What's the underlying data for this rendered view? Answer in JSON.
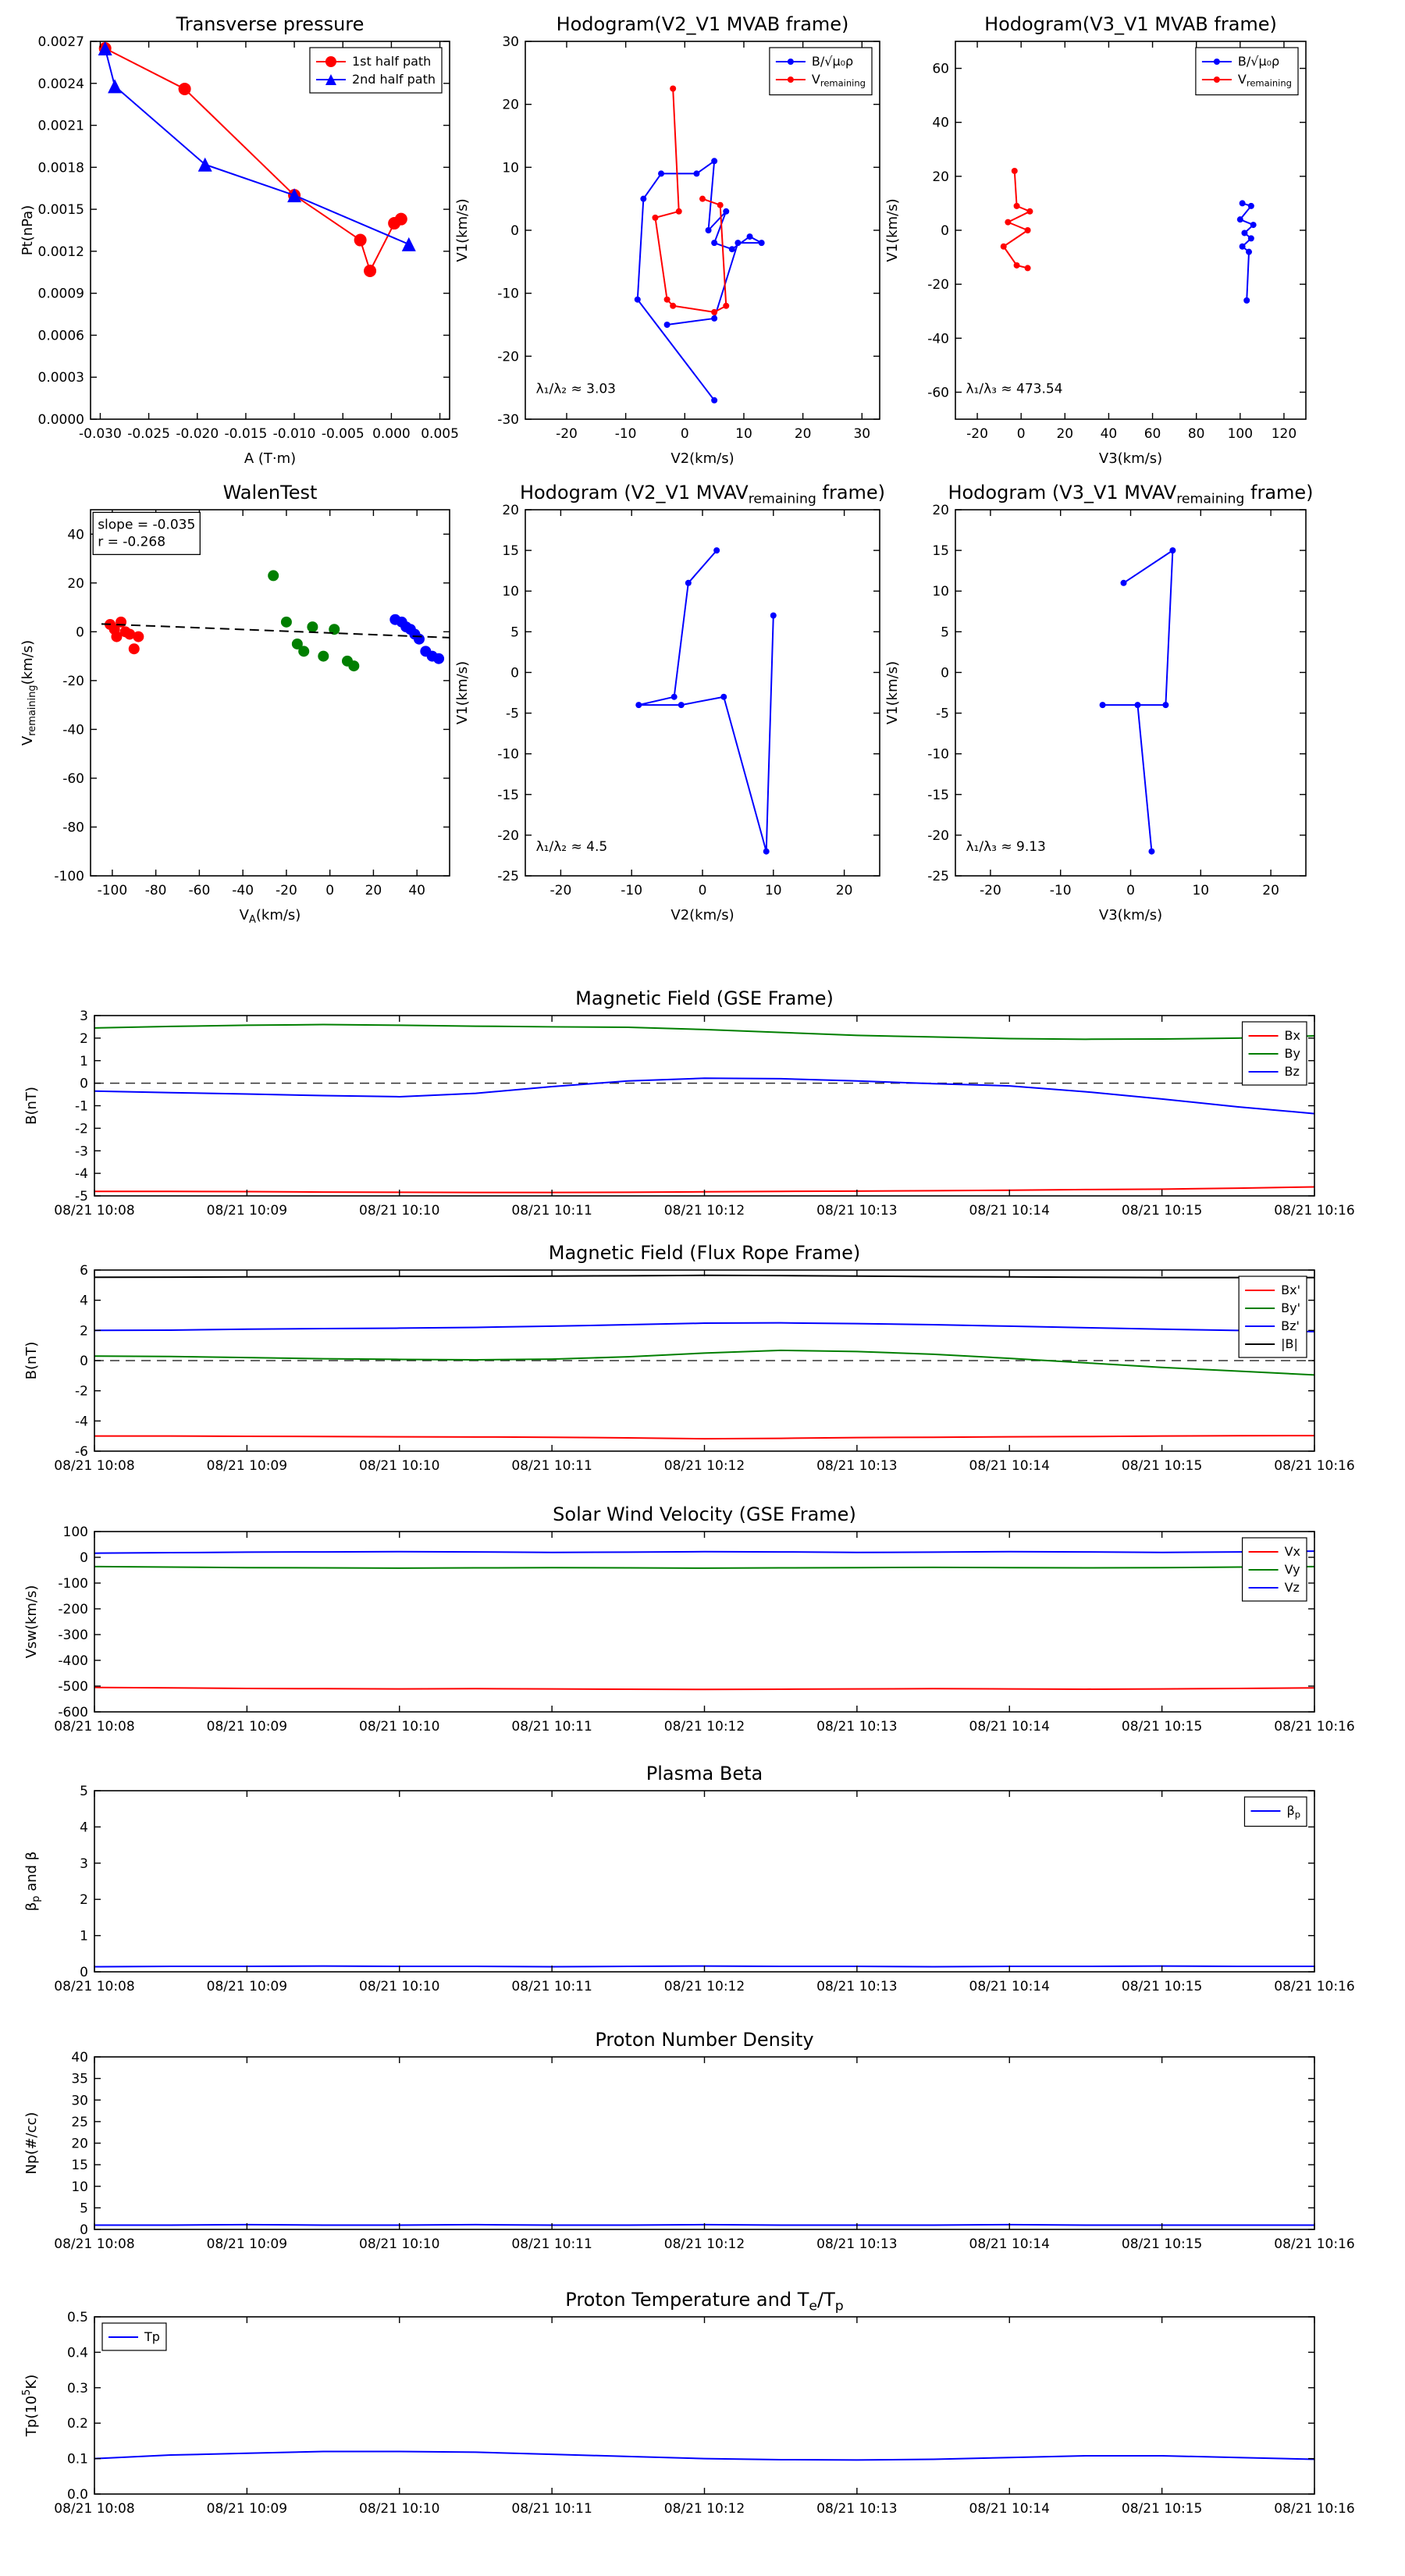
{
  "colors": {
    "red": "#ff0000",
    "green": "#007f00",
    "blue": "#0000ff",
    "black": "#000000"
  },
  "time_labels": [
    "08/21 10:08",
    "08/21 10:09",
    "08/21 10:10",
    "08/21 10:11",
    "08/21 10:12",
    "08/21 10:13",
    "08/21 10:14",
    "08/21 10:15",
    "08/21 10:16"
  ],
  "time_ticks": [
    0,
    1,
    2,
    3,
    4,
    5,
    6,
    7,
    8
  ],
  "time_x": [
    0,
    0.5,
    1,
    1.5,
    2,
    2.5,
    3,
    3.5,
    4,
    4.5,
    5,
    5.5,
    6,
    6.5,
    7,
    7.5,
    8
  ],
  "chart_data": [
    {
      "id": "transverse-pressure",
      "type": "line",
      "title": "Transverse pressure",
      "xlabel": "A (T·m)",
      "ylabel": "Pt(nPa)",
      "xlim": [
        -0.031,
        0.006
      ],
      "ylim": [
        0,
        0.0027
      ],
      "xticks": [
        -0.03,
        -0.025,
        -0.02,
        -0.015,
        -0.01,
        -0.005,
        0.0,
        0.005
      ],
      "xtick_labels": [
        "-0.030",
        "-0.025",
        "-0.020",
        "-0.015",
        "-0.010",
        "-0.005",
        "0.000",
        "0.005"
      ],
      "yticks": [
        0,
        0.0003,
        0.0006,
        0.0009,
        0.0012,
        0.0015,
        0.0018,
        0.0021,
        0.0024,
        0.0027
      ],
      "ytick_labels": [
        "0.0000",
        "0.0003",
        "0.0006",
        "0.0009",
        "0.0012",
        "0.0015",
        "0.0018",
        "0.0021",
        "0.0024",
        "0.0027"
      ],
      "legend": {
        "position": "ne"
      },
      "series": [
        {
          "name": "1st half path",
          "color": "#ff0000",
          "marker": "circle",
          "marker_size": 8,
          "x": [
            -0.0295,
            -0.0213,
            -0.01,
            -0.0032,
            -0.0022,
            0.0003,
            0.001
          ],
          "y": [
            0.00265,
            0.00236,
            0.0016,
            0.00128,
            0.00106,
            0.0014,
            0.00143
          ]
        },
        {
          "name": "2nd half path",
          "color": "#0000ff",
          "marker": "triangle",
          "marker_size": 9,
          "x": [
            -0.0295,
            -0.0285,
            -0.0192,
            -0.01,
            0.0018
          ],
          "y": [
            0.00265,
            0.00238,
            0.00182,
            0.0016,
            0.00125
          ]
        }
      ]
    },
    {
      "id": "hodogram-v2v1-mvab",
      "type": "line",
      "title": "Hodogram(V2_V1 MVAB frame)",
      "xlabel": "V2(km/s)",
      "ylabel": "V1(km/s)",
      "xlim": [
        -27,
        33
      ],
      "ylim": [
        -30,
        30
      ],
      "xticks": [
        -20,
        -10,
        0,
        10,
        20,
        30
      ],
      "yticks": [
        -30,
        -20,
        -10,
        0,
        10,
        20,
        30
      ],
      "legend": {
        "position": "ne"
      },
      "annotations": [
        {
          "text": "λ₁/λ₂ ≈ 3.03",
          "x": 0.03,
          "y": 0.9
        }
      ],
      "series": [
        {
          "name": "B/√μ₀ρ",
          "color": "#0000ff",
          "marker": "dot",
          "marker_size": 4,
          "x": [
            5,
            -8,
            -7,
            -4,
            2,
            5,
            4,
            7,
            5,
            8,
            11,
            13,
            9,
            5,
            -3
          ],
          "y": [
            -27,
            -11,
            5,
            9,
            9,
            11,
            0,
            3,
            -2,
            -3,
            -1,
            -2,
            -2,
            -14,
            -15
          ]
        },
        {
          "name": "V_{remaining}",
          "color": "#ff0000",
          "marker": "dot",
          "marker_size": 4,
          "x": [
            -2,
            -1,
            -5,
            -3,
            -2,
            5,
            7,
            6,
            3
          ],
          "y": [
            22.5,
            3,
            2,
            -11,
            -12,
            -13,
            -12,
            4,
            5
          ]
        }
      ]
    },
    {
      "id": "hodogram-v3v1-mvab",
      "type": "line",
      "title": "Hodogram(V3_V1 MVAB frame)",
      "xlabel": "V3(km/s)",
      "ylabel": "V1(km/s)",
      "xlim": [
        -30,
        130
      ],
      "ylim": [
        -70,
        70
      ],
      "xticks": [
        -20,
        0,
        20,
        40,
        60,
        80,
        100,
        120
      ],
      "yticks": [
        -60,
        -40,
        -20,
        0,
        20,
        40,
        60
      ],
      "legend": {
        "position": "ne"
      },
      "annotations": [
        {
          "text": "λ₁/λ₃ ≈ 473.54",
          "x": 0.03,
          "y": 0.9
        }
      ],
      "series": [
        {
          "name": "B/√μ₀ρ",
          "color": "#0000ff",
          "marker": "dot",
          "marker_size": 4,
          "x": [
            101,
            105,
            100,
            106,
            102,
            105,
            101,
            104,
            103
          ],
          "y": [
            10,
            9,
            4,
            2,
            -1,
            -3,
            -6,
            -8,
            -26
          ]
        },
        {
          "name": "V_{remaining}",
          "color": "#ff0000",
          "marker": "dot",
          "marker_size": 4,
          "x": [
            -3,
            -2,
            4,
            -6,
            3,
            -8,
            -2,
            3
          ],
          "y": [
            22,
            9,
            7,
            3,
            0,
            -6,
            -13,
            -14
          ]
        }
      ]
    },
    {
      "id": "walen-test",
      "type": "scatter",
      "title": "WalenTest",
      "xlabel": "V_{A}(km/s)",
      "ylabel": "V_{remaining}(km/s)",
      "xlim": [
        -110,
        55
      ],
      "ylim": [
        -100,
        50
      ],
      "xticks": [
        -100,
        -80,
        -60,
        -40,
        -20,
        0,
        20,
        40
      ],
      "yticks": [
        -100,
        -80,
        -60,
        -40,
        -20,
        0,
        20,
        40
      ],
      "annotations": [
        {
          "lines": [
            "slope = -0.035",
            "r = -0.268"
          ],
          "x": 0.02,
          "y": 0.02,
          "box": true
        }
      ],
      "series": [
        {
          "color": "#ff0000",
          "marker": "dot",
          "marker_size": 7,
          "line": false,
          "x": [
            -101,
            -99,
            -98,
            -96,
            -94,
            -92,
            -90,
            -88
          ],
          "y": [
            3,
            1,
            -2,
            4,
            0,
            -1,
            -7,
            -2
          ]
        },
        {
          "color": "#007f00",
          "marker": "dot",
          "marker_size": 7,
          "line": false,
          "x": [
            -26,
            -20,
            -15,
            -12,
            -8,
            -3,
            2,
            8,
            11
          ],
          "y": [
            23,
            4,
            -5,
            -8,
            2,
            -10,
            1,
            -12,
            -14
          ]
        },
        {
          "color": "#0000ff",
          "marker": "dot",
          "marker_size": 7,
          "line": false,
          "x": [
            30,
            33,
            35,
            37,
            39,
            41,
            44,
            47,
            50
          ],
          "y": [
            5,
            4,
            2,
            1,
            -1,
            -3,
            -8,
            -10,
            -11
          ]
        },
        {
          "color": "#000000",
          "dash": "12,7",
          "width": 2,
          "x": [
            -105,
            55
          ],
          "y": [
            3.2,
            -2.4
          ]
        }
      ]
    },
    {
      "id": "hodogram-v2v1-mvav",
      "type": "line",
      "title": "Hodogram (V2_V1 MVAV_{remaining} frame)",
      "xlabel": "V2(km/s)",
      "ylabel": "V1(km/s)",
      "xlim": [
        -25,
        25
      ],
      "ylim": [
        -25,
        20
      ],
      "xticks": [
        -20,
        -10,
        0,
        10,
        20
      ],
      "yticks": [
        -25,
        -20,
        -15,
        -10,
        -5,
        0,
        5,
        10,
        15,
        20
      ],
      "annotations": [
        {
          "text": "λ₁/λ₂ ≈ 4.5",
          "x": 0.03,
          "y": 0.9
        }
      ],
      "series": [
        {
          "color": "#0000ff",
          "marker": "dot",
          "marker_size": 4,
          "x": [
            2,
            -2,
            -4,
            -9,
            -3,
            3,
            9,
            10
          ],
          "y": [
            15,
            11,
            -3,
            -4,
            -4,
            -3,
            -22,
            7
          ]
        }
      ]
    },
    {
      "id": "hodogram-v3v1-mvav",
      "type": "line",
      "title": "Hodogram (V3_V1 MVAV_{remaining} frame)",
      "xlabel": "V3(km/s)",
      "ylabel": "V1(km/s)",
      "xlim": [
        -25,
        25
      ],
      "ylim": [
        -25,
        20
      ],
      "xticks": [
        -20,
        -10,
        0,
        10,
        20
      ],
      "yticks": [
        -25,
        -20,
        -15,
        -10,
        -5,
        0,
        5,
        10,
        15,
        20
      ],
      "annotations": [
        {
          "text": "λ₁/λ₃ ≈ 9.13",
          "x": 0.03,
          "y": 0.9
        }
      ],
      "series": [
        {
          "color": "#0000ff",
          "marker": "dot",
          "marker_size": 4,
          "x": [
            -1,
            6,
            5,
            -4,
            1,
            3
          ],
          "y": [
            11,
            15,
            -4,
            -4,
            -4,
            -22
          ]
        }
      ]
    },
    {
      "id": "b-gse",
      "type": "line",
      "title": "Magnetic Field (GSE Frame)",
      "xlabel": "",
      "ylabel": "B(nT)",
      "xlim": [
        0,
        8
      ],
      "ylim": [
        -5,
        3
      ],
      "xticks": "@time_ticks",
      "xtick_labels": "@time_labels",
      "yticks": [
        -5,
        -4,
        -3,
        -2,
        -1,
        0,
        1,
        2,
        3
      ],
      "zero_line": true,
      "legend": {
        "position": "ne"
      },
      "series": [
        {
          "name": "Bx",
          "color": "#ff0000",
          "x": "@time_x",
          "y": [
            -4.8,
            -4.8,
            -4.81,
            -4.83,
            -4.84,
            -4.85,
            -4.85,
            -4.84,
            -4.82,
            -4.8,
            -4.79,
            -4.77,
            -4.75,
            -4.72,
            -4.7,
            -4.66,
            -4.6
          ]
        },
        {
          "name": "By",
          "color": "#007f00",
          "x": "@time_x",
          "y": [
            2.45,
            2.52,
            2.57,
            2.6,
            2.57,
            2.53,
            2.5,
            2.48,
            2.38,
            2.25,
            2.12,
            2.05,
            1.98,
            1.95,
            1.96,
            2.0,
            2.1
          ]
        },
        {
          "name": "Bz",
          "color": "#0000ff",
          "x": "@time_x",
          "y": [
            -0.35,
            -0.42,
            -0.48,
            -0.55,
            -0.6,
            -0.45,
            -0.15,
            0.1,
            0.22,
            0.2,
            0.1,
            -0.02,
            -0.12,
            -0.38,
            -0.7,
            -1.05,
            -1.35
          ]
        }
      ]
    },
    {
      "id": "b-fluxrope",
      "type": "line",
      "title": "Magnetic Field (Flux Rope Frame)",
      "xlabel": "",
      "ylabel": "B(nT)",
      "xlim": [
        0,
        8
      ],
      "ylim": [
        -6,
        6
      ],
      "xticks": "@time_ticks",
      "xtick_labels": "@time_labels",
      "yticks": [
        -6,
        -4,
        -2,
        0,
        2,
        4,
        6
      ],
      "zero_line": true,
      "legend": {
        "position": "ne"
      },
      "series": [
        {
          "name": "Bx'",
          "color": "#ff0000",
          "x": "@time_x",
          "y": [
            -5.0,
            -5.0,
            -5.02,
            -5.03,
            -5.05,
            -5.06,
            -5.08,
            -5.12,
            -5.18,
            -5.15,
            -5.1,
            -5.08,
            -5.05,
            -5.03,
            -5.0,
            -4.98,
            -4.97
          ]
        },
        {
          "name": "By'",
          "color": "#007f00",
          "x": "@time_x",
          "y": [
            0.3,
            0.27,
            0.2,
            0.12,
            0.08,
            0.05,
            0.1,
            0.25,
            0.5,
            0.68,
            0.6,
            0.42,
            0.15,
            -0.15,
            -0.45,
            -0.7,
            -0.95
          ]
        },
        {
          "name": "Bz'",
          "color": "#0000ff",
          "x": "@time_x",
          "y": [
            2.0,
            2.02,
            2.08,
            2.12,
            2.15,
            2.2,
            2.28,
            2.38,
            2.48,
            2.5,
            2.45,
            2.38,
            2.28,
            2.18,
            2.08,
            2.0,
            1.92
          ]
        },
        {
          "name": "|B|",
          "color": "#000000",
          "x": "@time_x",
          "y": [
            5.52,
            5.53,
            5.55,
            5.56,
            5.58,
            5.58,
            5.6,
            5.62,
            5.65,
            5.63,
            5.6,
            5.57,
            5.55,
            5.52,
            5.5,
            5.5,
            5.5
          ]
        }
      ]
    },
    {
      "id": "vsw-gse",
      "type": "line",
      "title": "Solar Wind Velocity (GSE Frame)",
      "xlabel": "",
      "ylabel": "Vsw(km/s)",
      "xlim": [
        0,
        8
      ],
      "ylim": [
        -600,
        100
      ],
      "xticks": "@time_ticks",
      "xtick_labels": "@time_labels",
      "yticks": [
        -600,
        -500,
        -400,
        -300,
        -200,
        -100,
        0,
        100
      ],
      "legend": {
        "position": "ne"
      },
      "series": [
        {
          "name": "Vx",
          "color": "#ff0000",
          "x": "@time_x",
          "y": [
            -505,
            -507,
            -509,
            -510,
            -511,
            -510,
            -511,
            -512,
            -513,
            -512,
            -511,
            -510,
            -511,
            -512,
            -511,
            -509,
            -507
          ]
        },
        {
          "name": "Vy",
          "color": "#007f00",
          "x": "@time_x",
          "y": [
            -36,
            -38,
            -40,
            -41,
            -42,
            -41,
            -40,
            -41,
            -42,
            -41,
            -40,
            -39,
            -40,
            -41,
            -40,
            -38,
            -36
          ]
        },
        {
          "name": "Vz",
          "color": "#0000ff",
          "x": "@time_x",
          "y": [
            16,
            18,
            20,
            21,
            22,
            21,
            19,
            20,
            22,
            21,
            19,
            20,
            22,
            21,
            19,
            21,
            24
          ]
        }
      ]
    },
    {
      "id": "plasma-beta",
      "type": "line",
      "title": "Plasma Beta",
      "xlabel": "",
      "ylabel": "β_{p} and β",
      "xlim": [
        0,
        8
      ],
      "ylim": [
        0,
        5
      ],
      "xticks": "@time_ticks",
      "xtick_labels": "@time_labels",
      "yticks": [
        0,
        1,
        2,
        3,
        4,
        5
      ],
      "legend": {
        "position": "ne"
      },
      "series": [
        {
          "name": "β_{p}",
          "color": "#0000ff",
          "x": "@time_x",
          "y": [
            0.14,
            0.15,
            0.15,
            0.16,
            0.15,
            0.15,
            0.14,
            0.15,
            0.16,
            0.15,
            0.15,
            0.14,
            0.15,
            0.15,
            0.16,
            0.15,
            0.15
          ]
        }
      ]
    },
    {
      "id": "proton-density",
      "type": "line",
      "title": "Proton Number Density",
      "xlabel": "",
      "ylabel": "Np(#/cc)",
      "xlim": [
        0,
        8
      ],
      "ylim": [
        0,
        40
      ],
      "xticks": "@time_ticks",
      "xtick_labels": "@time_labels",
      "yticks": [
        0,
        5,
        10,
        15,
        20,
        25,
        30,
        35,
        40
      ],
      "series": [
        {
          "color": "#0000ff",
          "x": "@time_x",
          "y": [
            1.0,
            1.0,
            1.1,
            1.0,
            1.0,
            1.1,
            1.0,
            1.0,
            1.1,
            1.0,
            1.0,
            1.0,
            1.1,
            1.0,
            1.0,
            1.0,
            1.0
          ]
        }
      ]
    },
    {
      "id": "proton-temp",
      "type": "line",
      "title": "Proton Temperature and T_{e}/T_{p}",
      "xlabel": "",
      "ylabel": "Tp(10^{5}K)",
      "xlim": [
        0,
        8
      ],
      "ylim": [
        0,
        0.5
      ],
      "xticks": "@time_ticks",
      "xtick_labels": "@time_labels",
      "yticks": [
        0,
        0.1,
        0.2,
        0.3,
        0.4,
        0.5
      ],
      "ytick_labels": [
        "0.0",
        "0.1",
        "0.2",
        "0.3",
        "0.4",
        "0.5"
      ],
      "legend": {
        "position": "nw"
      },
      "series": [
        {
          "name": "Tp",
          "color": "#0000ff",
          "x": "@time_x",
          "y": [
            0.1,
            0.11,
            0.115,
            0.12,
            0.12,
            0.118,
            0.112,
            0.106,
            0.1,
            0.097,
            0.096,
            0.098,
            0.103,
            0.108,
            0.108,
            0.103,
            0.098
          ]
        }
      ]
    }
  ]
}
